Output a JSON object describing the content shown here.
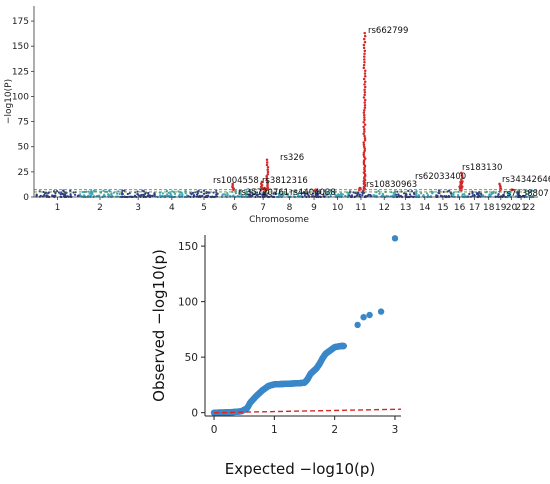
{
  "chart_data": [
    {
      "type": "scatter",
      "subtype": "manhattan",
      "title": "",
      "xlabel": "Chromosome",
      "ylabel": "−log10(P)",
      "ylim": [
        0,
        190
      ],
      "y_ticks": [
        0,
        25,
        50,
        75,
        100,
        125,
        150,
        175
      ],
      "chromosomes": [
        "1",
        "2",
        "3",
        "4",
        "5",
        "6",
        "7",
        "8",
        "9",
        "10",
        "11",
        "12",
        "13",
        "14",
        "15",
        "16",
        "17",
        "18",
        "19",
        "20",
        "21",
        "22"
      ],
      "threshold_lines": [
        5,
        7.3
      ],
      "colors": {
        "points_a": "#2d3e8f",
        "points_b": "#3aa8c4",
        "significant": "#d62728",
        "threshold": "#6b8e23"
      },
      "hits": [
        {
          "chrom": "6",
          "label": "rs1004558",
          "y": 13
        },
        {
          "chrom": "7",
          "label": "rs35720761",
          "y": 9
        },
        {
          "chrom": "7",
          "label": "rs326",
          "y": 37
        },
        {
          "chrom": "7",
          "label": "rs3812316",
          "y": 15
        },
        {
          "chrom": "9",
          "label": "rs4404038",
          "y": 6
        },
        {
          "chrom": "11",
          "label": "rs662799",
          "y": 163
        },
        {
          "chrom": "11",
          "label": "rs10830963",
          "y": 9
        },
        {
          "chrom": "16",
          "label": "rs62033400",
          "y": 15
        },
        {
          "chrom": "16",
          "label": "rs183130",
          "y": 24
        },
        {
          "chrom": "19",
          "label": "rs34342646",
          "y": 13
        },
        {
          "chrom": "20",
          "label": "rs7138807",
          "y": 7
        }
      ]
    },
    {
      "type": "scatter",
      "subtype": "qq",
      "title": "",
      "xlabel": "Expected  −log10(p)",
      "ylabel": "Observed  −log10(p)",
      "xlim": [
        -0.15,
        3.1
      ],
      "ylim": [
        -3,
        160
      ],
      "x_ticks": [
        0,
        1,
        2,
        3
      ],
      "y_ticks": [
        0,
        50,
        100,
        150
      ],
      "colors": {
        "points": "#3a87c8",
        "reference": "#d62728"
      },
      "reference_line": [
        [
          0,
          0
        ],
        [
          3.1,
          3.1
        ]
      ],
      "outliers": [
        {
          "x": 2.15,
          "y": 60
        },
        {
          "x": 2.38,
          "y": 79
        },
        {
          "x": 2.48,
          "y": 86
        },
        {
          "x": 2.58,
          "y": 88
        },
        {
          "x": 2.77,
          "y": 91
        },
        {
          "x": 3.0,
          "y": 157
        }
      ]
    }
  ]
}
